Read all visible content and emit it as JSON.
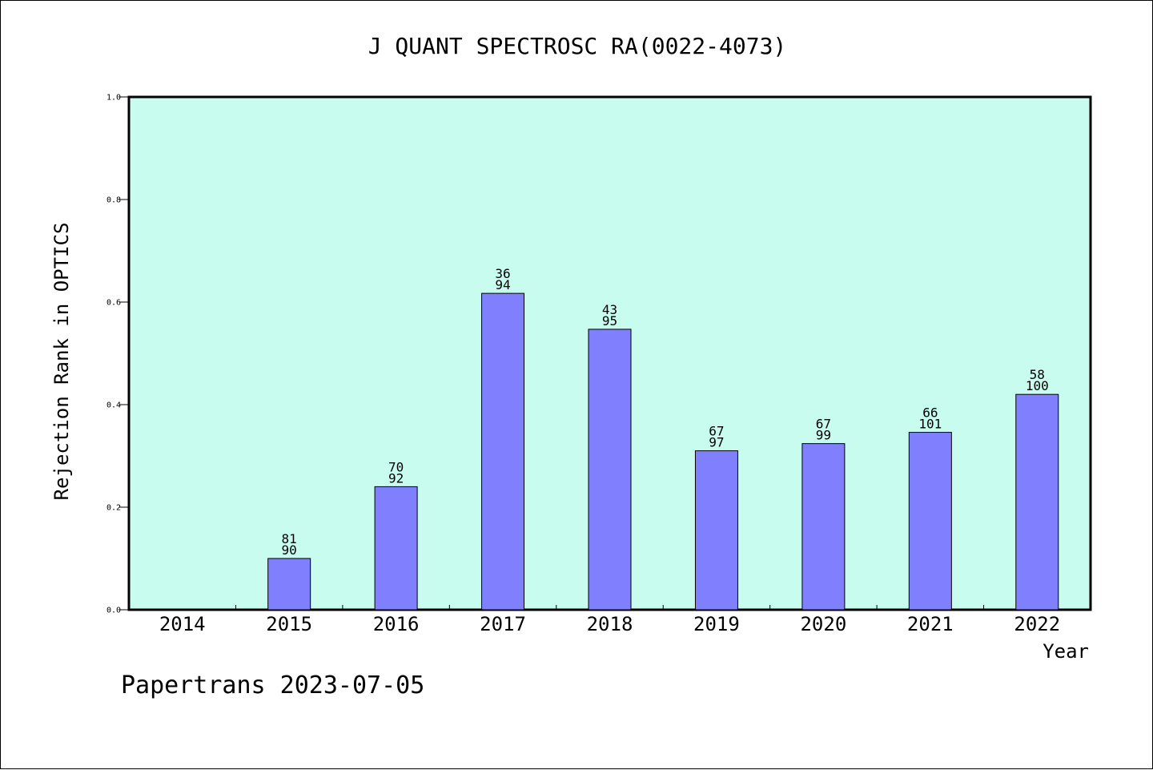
{
  "chart_data": {
    "type": "bar",
    "title": "J QUANT SPECTROSC RA(0022-4073)",
    "xlabel": "Year",
    "ylabel": "Rejection Rank in OPTICS",
    "categories": [
      "2014",
      "2015",
      "2016",
      "2017",
      "2018",
      "2019",
      "2020",
      "2021",
      "2022"
    ],
    "values": [
      null,
      0.1,
      0.24,
      0.617,
      0.547,
      0.31,
      0.324,
      0.346,
      0.42
    ],
    "bar_labels": [
      null,
      [
        "81",
        "90"
      ],
      [
        "70",
        "92"
      ],
      [
        "36",
        "94"
      ],
      [
        "43",
        "95"
      ],
      [
        "67",
        "97"
      ],
      [
        "67",
        "99"
      ],
      [
        "66",
        "101"
      ],
      [
        "58",
        "100"
      ]
    ],
    "ylim": [
      0,
      1.0
    ],
    "yticks": [
      0.0,
      0.2,
      0.4,
      0.6,
      0.8,
      1.0
    ],
    "ytick_labels": [
      "0.0",
      "0.2",
      "0.4",
      "0.6",
      "0.8",
      "1.0"
    ],
    "grid": false,
    "colors": {
      "plot_background": "#c8fcee",
      "bar_fill": "#8080ff",
      "bar_stroke": "#000000"
    }
  },
  "footer": "Papertrans 2023-07-05"
}
